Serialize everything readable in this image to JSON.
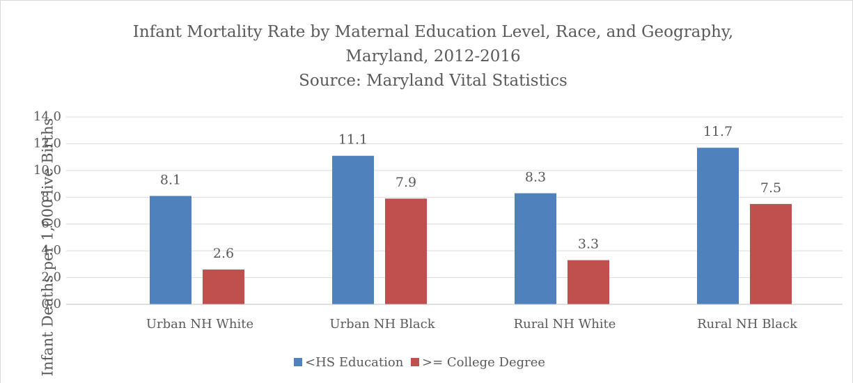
{
  "chart_data": {
    "type": "bar",
    "title": [
      "Infant Mortality Rate by Maternal Education Level, Race, and Geography,",
      "Maryland, 2012-2016",
      "Source: Maryland Vital Statistics"
    ],
    "y_label": "Infant Deaths per 1,000 live Births",
    "categories": [
      "Urban NH White",
      "Urban NH Black",
      "Rural NH White",
      "Rural NH Black"
    ],
    "series": [
      {
        "name": "<HS Education",
        "color": "#4f81bd",
        "values": [
          8.1,
          11.1,
          8.3,
          11.7
        ]
      },
      {
        "name": ">= College Degree",
        "color": "#c0504d",
        "values": [
          2.6,
          7.9,
          3.3,
          7.5
        ]
      }
    ],
    "ylim": [
      0,
      14
    ],
    "yticks": [
      {
        "value": 0,
        "label": "0.0"
      },
      {
        "value": 2,
        "label": "2.0"
      },
      {
        "value": 4,
        "label": "4.0"
      },
      {
        "value": 6,
        "label": "6.0"
      },
      {
        "value": 8,
        "label": "8.0"
      },
      {
        "value": 10,
        "label": "10.0"
      },
      {
        "value": 12,
        "label": "12.0"
      },
      {
        "value": 14,
        "label": "14.0"
      }
    ],
    "grid": true,
    "legend": "bottom"
  }
}
